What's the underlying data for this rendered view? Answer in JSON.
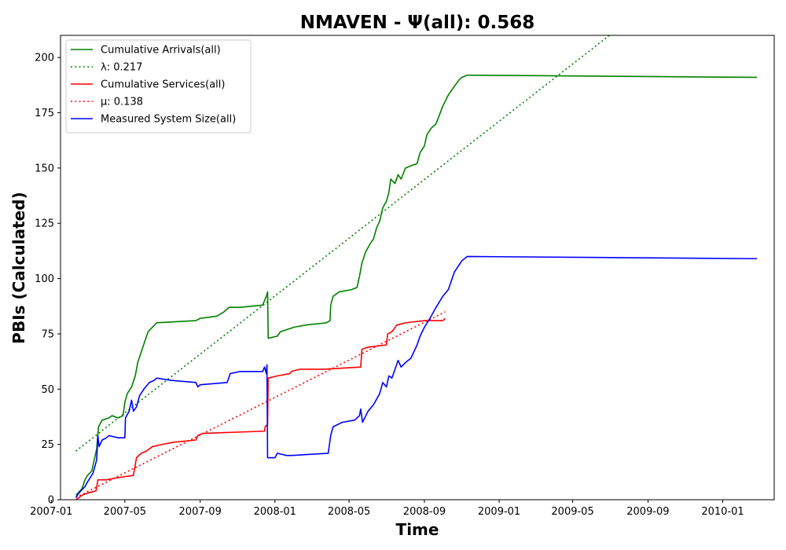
{
  "chart_data": {
    "type": "line",
    "title": "NMAVEN -  Ψ(all): 0.568",
    "xlabel": "Time",
    "ylabel": "PBIs (Calculated)",
    "xlim": [
      "2007-01-16",
      "2010-03-26"
    ],
    "ylim": [
      0,
      210
    ],
    "grid": false,
    "legend_position": "top-left",
    "x_ticks": [
      "2007-01",
      "2007-05",
      "2007-09",
      "2008-01",
      "2008-05",
      "2008-09",
      "2009-01",
      "2009-05",
      "2009-09",
      "2010-01"
    ],
    "y_ticks": [
      0,
      25,
      50,
      75,
      100,
      125,
      150,
      175,
      200
    ],
    "series": [
      {
        "name": "Cumulative Arrivals(all)",
        "legend_label": "Cumulative Arrivals(all)",
        "color": "#008000",
        "style": "solid",
        "points": [
          [
            "2007-02-10",
            2
          ],
          [
            "2007-02-20",
            5
          ],
          [
            "2007-02-25",
            9
          ],
          [
            "2007-03-01",
            11
          ],
          [
            "2007-03-08",
            13
          ],
          [
            "2007-03-12",
            18
          ],
          [
            "2007-03-16",
            23
          ],
          [
            "2007-03-19",
            33
          ],
          [
            "2007-03-25",
            36
          ],
          [
            "2007-04-05",
            37
          ],
          [
            "2007-04-10",
            38
          ],
          [
            "2007-04-20",
            37
          ],
          [
            "2007-04-28",
            38
          ],
          [
            "2007-05-01",
            44
          ],
          [
            "2007-05-05",
            48
          ],
          [
            "2007-05-12",
            51
          ],
          [
            "2007-05-18",
            56
          ],
          [
            "2007-05-22",
            62
          ],
          [
            "2007-05-28",
            67
          ],
          [
            "2007-06-03",
            72
          ],
          [
            "2007-06-08",
            76
          ],
          [
            "2007-06-15",
            78
          ],
          [
            "2007-06-22",
            80
          ],
          [
            "2007-08-25",
            81
          ],
          [
            "2007-09-01",
            82
          ],
          [
            "2007-09-28",
            83
          ],
          [
            "2007-10-10",
            85
          ],
          [
            "2007-10-14",
            86
          ],
          [
            "2007-10-18",
            87
          ],
          [
            "2007-11-05",
            87
          ],
          [
            "2007-12-12",
            88
          ],
          [
            "2007-12-18",
            92
          ],
          [
            "2007-12-20",
            94
          ],
          [
            "2007-12-21",
            73
          ],
          [
            "2008-01-05",
            74
          ],
          [
            "2008-01-10",
            76
          ],
          [
            "2008-02-01",
            78
          ],
          [
            "2008-02-20",
            79
          ],
          [
            "2008-03-25",
            80
          ],
          [
            "2008-03-31",
            81
          ],
          [
            "2008-04-01",
            88
          ],
          [
            "2008-04-05",
            92
          ],
          [
            "2008-04-15",
            94
          ],
          [
            "2008-05-05",
            95
          ],
          [
            "2008-05-14",
            96
          ],
          [
            "2008-05-18",
            101
          ],
          [
            "2008-05-22",
            107
          ],
          [
            "2008-05-28",
            112
          ],
          [
            "2008-06-05",
            116
          ],
          [
            "2008-06-10",
            118
          ],
          [
            "2008-06-15",
            123
          ],
          [
            "2008-06-20",
            126
          ],
          [
            "2008-06-25",
            132
          ],
          [
            "2008-07-01",
            135
          ],
          [
            "2008-07-05",
            139
          ],
          [
            "2008-07-08",
            145
          ],
          [
            "2008-07-15",
            143
          ],
          [
            "2008-07-20",
            147
          ],
          [
            "2008-07-25",
            145
          ],
          [
            "2008-08-01",
            150
          ],
          [
            "2008-08-10",
            151
          ],
          [
            "2008-08-20",
            152
          ],
          [
            "2008-08-25",
            157
          ],
          [
            "2008-09-01",
            160
          ],
          [
            "2008-09-05",
            165
          ],
          [
            "2008-09-12",
            168
          ],
          [
            "2008-09-20",
            170
          ],
          [
            "2008-10-01",
            178
          ],
          [
            "2008-10-10",
            183
          ],
          [
            "2008-10-20",
            187
          ],
          [
            "2008-10-28",
            190
          ],
          [
            "2008-11-01",
            191
          ],
          [
            "2008-11-10",
            192
          ],
          [
            "2010-02-26",
            191
          ]
        ]
      },
      {
        "name": "λ: 0.217",
        "legend_label": "λ: 0.217",
        "color": "#008000",
        "style": "dotted",
        "points": [
          [
            "2007-02-10",
            22
          ],
          [
            "2009-06-30",
            210
          ]
        ]
      },
      {
        "name": "Cumulative Services(all)",
        "legend_label": "Cumulative Services(all)",
        "color": "#ff0000",
        "style": "solid",
        "points": [
          [
            "2007-02-10",
            0
          ],
          [
            "2007-02-20",
            2
          ],
          [
            "2007-03-01",
            3
          ],
          [
            "2007-03-15",
            4
          ],
          [
            "2007-03-18",
            9
          ],
          [
            "2007-04-01",
            9
          ],
          [
            "2007-04-20",
            10
          ],
          [
            "2007-05-15",
            11
          ],
          [
            "2007-05-20",
            19
          ],
          [
            "2007-05-28",
            21
          ],
          [
            "2007-06-05",
            22
          ],
          [
            "2007-06-15",
            24
          ],
          [
            "2007-07-01",
            25
          ],
          [
            "2007-07-20",
            26
          ],
          [
            "2007-08-25",
            27
          ],
          [
            "2007-08-28",
            29
          ],
          [
            "2007-09-05",
            30
          ],
          [
            "2007-12-15",
            31
          ],
          [
            "2007-12-16",
            33
          ],
          [
            "2007-12-20",
            34
          ],
          [
            "2007-12-21",
            55
          ],
          [
            "2008-01-05",
            56
          ],
          [
            "2008-01-25",
            57
          ],
          [
            "2008-01-28",
            58
          ],
          [
            "2008-02-10",
            59
          ],
          [
            "2008-03-20",
            59
          ],
          [
            "2008-05-20",
            60
          ],
          [
            "2008-05-22",
            68
          ],
          [
            "2008-06-01",
            69
          ],
          [
            "2008-07-01",
            70
          ],
          [
            "2008-07-03",
            75
          ],
          [
            "2008-07-10",
            76
          ],
          [
            "2008-07-18",
            79
          ],
          [
            "2008-08-01",
            80
          ],
          [
            "2008-09-01",
            81
          ],
          [
            "2008-10-01",
            81
          ],
          [
            "2008-10-05",
            82
          ]
        ]
      },
      {
        "name": "μ: 0.138",
        "legend_label": "μ: 0.138",
        "color": "#ff0000",
        "style": "dotted",
        "points": [
          [
            "2007-02-10",
            1
          ],
          [
            "2008-10-05",
            85
          ]
        ]
      },
      {
        "name": "Measured System Size(all)",
        "legend_label": "Measured System Size(all)",
        "color": "#0000ff",
        "style": "solid",
        "points": [
          [
            "2007-02-10",
            1
          ],
          [
            "2007-02-15",
            3
          ],
          [
            "2007-02-25",
            6
          ],
          [
            "2007-03-01",
            8
          ],
          [
            "2007-03-10",
            12
          ],
          [
            "2007-03-16",
            18
          ],
          [
            "2007-03-18",
            29
          ],
          [
            "2007-03-20",
            24
          ],
          [
            "2007-03-25",
            27
          ],
          [
            "2007-04-01",
            28
          ],
          [
            "2007-04-05",
            29
          ],
          [
            "2007-04-20",
            28
          ],
          [
            "2007-05-01",
            28
          ],
          [
            "2007-05-02",
            37
          ],
          [
            "2007-05-08",
            40
          ],
          [
            "2007-05-12",
            45
          ],
          [
            "2007-05-15",
            40
          ],
          [
            "2007-05-20",
            42
          ],
          [
            "2007-05-25",
            47
          ],
          [
            "2007-06-01",
            50
          ],
          [
            "2007-06-10",
            53
          ],
          [
            "2007-06-18",
            54
          ],
          [
            "2007-06-22",
            55
          ],
          [
            "2007-07-15",
            54
          ],
          [
            "2007-08-25",
            53
          ],
          [
            "2007-08-28",
            51
          ],
          [
            "2007-09-01",
            52
          ],
          [
            "2007-10-15",
            53
          ],
          [
            "2007-10-20",
            57
          ],
          [
            "2007-11-05",
            58
          ],
          [
            "2007-12-12",
            58
          ],
          [
            "2007-12-15",
            60
          ],
          [
            "2007-12-18",
            57
          ],
          [
            "2007-12-19",
            61
          ],
          [
            "2007-12-20",
            19
          ],
          [
            "2008-01-01",
            19
          ],
          [
            "2008-01-05",
            21
          ],
          [
            "2008-01-20",
            20
          ],
          [
            "2008-01-28",
            20
          ],
          [
            "2008-03-28",
            21
          ],
          [
            "2008-04-01",
            29
          ],
          [
            "2008-04-05",
            33
          ],
          [
            "2008-04-20",
            35
          ],
          [
            "2008-05-10",
            36
          ],
          [
            "2008-05-18",
            38
          ],
          [
            "2008-05-20",
            41
          ],
          [
            "2008-05-23",
            35
          ],
          [
            "2008-06-01",
            40
          ],
          [
            "2008-06-10",
            43
          ],
          [
            "2008-06-20",
            48
          ],
          [
            "2008-06-25",
            53
          ],
          [
            "2008-07-01",
            51
          ],
          [
            "2008-07-05",
            56
          ],
          [
            "2008-07-10",
            55
          ],
          [
            "2008-07-20",
            63
          ],
          [
            "2008-07-25",
            60
          ],
          [
            "2008-08-01",
            62
          ],
          [
            "2008-08-10",
            64
          ],
          [
            "2008-08-20",
            70
          ],
          [
            "2008-08-25",
            74
          ],
          [
            "2008-09-01",
            78
          ],
          [
            "2008-09-10",
            82
          ],
          [
            "2008-09-20",
            87
          ],
          [
            "2008-10-01",
            92
          ],
          [
            "2008-10-10",
            95
          ],
          [
            "2008-10-20",
            103
          ],
          [
            "2008-11-01",
            108
          ],
          [
            "2008-11-10",
            110
          ],
          [
            "2010-02-26",
            109
          ]
        ]
      }
    ]
  }
}
